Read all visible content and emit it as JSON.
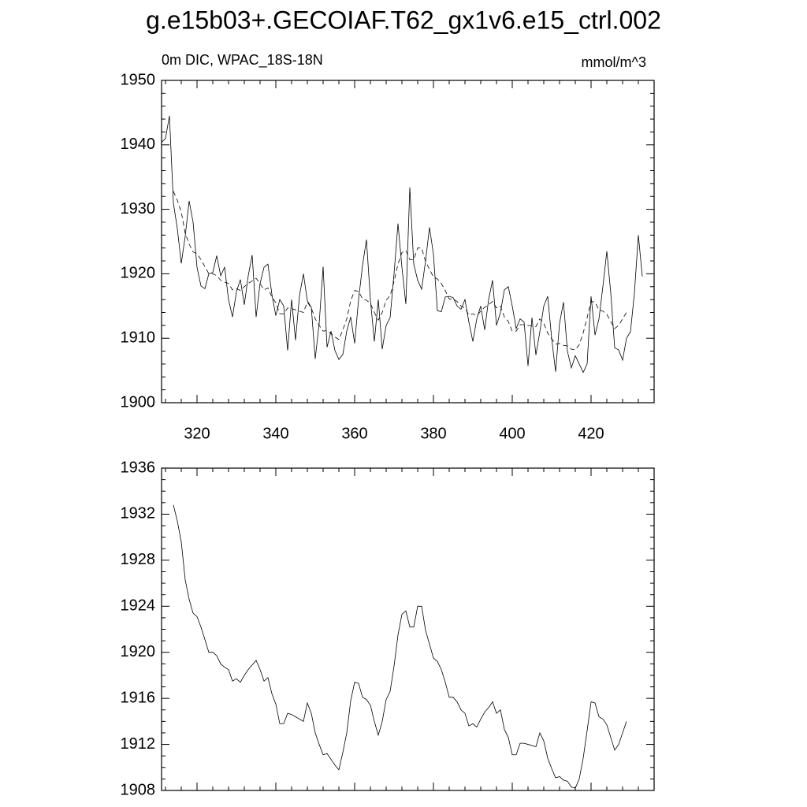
{
  "title": "g.e15b03+.GECOIAF.T62_gx1v6.e15_ctrl.002",
  "chart_data": [
    {
      "type": "line",
      "subtitle": "0m DIC, WPAC_18S-18N",
      "units": "mmol/m^3",
      "xlim": [
        311,
        436
      ],
      "ylim": [
        1900,
        1950
      ],
      "xticks": [
        320,
        340,
        360,
        380,
        400,
        420
      ],
      "yticks": [
        1900,
        1910,
        1920,
        1930,
        1940,
        1950
      ],
      "xtick_labels": true,
      "series": [
        {
          "color": "#000000",
          "style": "solid",
          "x": [
            311,
            312,
            313,
            314,
            315,
            316,
            317,
            318,
            319,
            320,
            321,
            322,
            323,
            324,
            325,
            326,
            327,
            328,
            329,
            330,
            331,
            332,
            333,
            334,
            335,
            336,
            337,
            338,
            339,
            340,
            341,
            342,
            343,
            344,
            345,
            346,
            347,
            348,
            349,
            350,
            351,
            352,
            353,
            354,
            355,
            356,
            357,
            358,
            359,
            360,
            361,
            362,
            363,
            364,
            365,
            366,
            367,
            368,
            369,
            370,
            371,
            372,
            373,
            374,
            375,
            376,
            377,
            378,
            379,
            380,
            381,
            382,
            383,
            384,
            385,
            386,
            387,
            388,
            389,
            390,
            391,
            392,
            393,
            394,
            395,
            396,
            397,
            398,
            399,
            400,
            401,
            402,
            403,
            404,
            405,
            406,
            407,
            408,
            409,
            410,
            411,
            412,
            413,
            414,
            415,
            416,
            417,
            418,
            419,
            420,
            421,
            422,
            423,
            424,
            425,
            426,
            427,
            428,
            429,
            430,
            431,
            432,
            433
          ],
          "values": [
            1940.4,
            1941,
            1944.5,
            1931,
            1927,
            1921.6,
            1925.8,
            1931.3,
            1928,
            1921,
            1918.1,
            1917.7,
            1920,
            1920.2,
            1922.8,
            1919.7,
            1921,
            1916,
            1913.3,
            1917.2,
            1919.1,
            1915.2,
            1919.7,
            1922.9,
            1913.3,
            1918.5,
            1921,
            1921.5,
            1916.8,
            1913.5,
            1916,
            1915,
            1908.1,
            1916,
            1909.7,
            1916.6,
            1920,
            1915.8,
            1914.8,
            1906.8,
            1912.3,
            1921.1,
            1908.6,
            1911.1,
            1908.1,
            1906.7,
            1907.5,
            1911.1,
            1913.3,
            1909.2,
            1916,
            1921.3,
            1925.3,
            1916,
            1909.5,
            1916,
            1908.3,
            1912,
            1913.2,
            1920,
            1927.8,
            1921,
            1915.3,
            1933.4,
            1921.5,
            1919,
            1917.6,
            1922,
            1927.2,
            1923,
            1914.3,
            1914.1,
            1916.4,
            1916.5,
            1916.3,
            1915,
            1914.5,
            1916,
            1912.5,
            1909.5,
            1913,
            1915,
            1911.3,
            1916,
            1919,
            1912,
            1914,
            1917.5,
            1918,
            1915,
            1911.5,
            1913,
            1912.5,
            1905.7,
            1913.2,
            1907.4,
            1911,
            1915,
            1916.5,
            1910,
            1904.8,
            1912.3,
            1915.6,
            1908,
            1905.4,
            1907.3,
            1906,
            1904.7,
            1906,
            1916.5,
            1910.5,
            1913,
            1918,
            1923.5,
            1917,
            1908.5,
            1908.2,
            1906.6,
            1910,
            1911,
            1917,
            1926,
            1919.6
          ]
        },
        {
          "color": "#000000",
          "style": "dashed",
          "x": [
            314,
            315,
            316,
            317,
            318,
            319,
            320,
            321,
            322,
            323,
            324,
            325,
            326,
            327,
            328,
            329,
            330,
            331,
            332,
            333,
            334,
            335,
            336,
            337,
            338,
            339,
            340,
            341,
            342,
            343,
            344,
            345,
            346,
            347,
            348,
            349,
            350,
            351,
            352,
            353,
            354,
            355,
            356,
            357,
            358,
            359,
            360,
            361,
            362,
            363,
            364,
            365,
            366,
            367,
            368,
            369,
            370,
            371,
            372,
            373,
            374,
            375,
            376,
            377,
            378,
            379,
            380,
            381,
            382,
            383,
            384,
            385,
            386,
            387,
            388,
            389,
            390,
            391,
            392,
            393,
            394,
            395,
            396,
            397,
            398,
            399,
            400,
            401,
            402,
            403,
            404,
            405,
            406,
            407,
            408,
            409,
            410,
            411,
            412,
            413,
            414,
            415,
            416,
            417,
            418,
            419,
            420,
            421,
            422,
            423,
            424,
            425,
            426,
            427,
            428,
            429
          ],
          "values": [
            1932.8,
            1931.4,
            1929.6,
            1926.3,
            1924.6,
            1923.4,
            1923.1,
            1922.2,
            1921.1,
            1920,
            1920,
            1919.7,
            1919,
            1918.7,
            1918.5,
            1917.5,
            1917.7,
            1917.4,
            1918,
            1918.5,
            1918.9,
            1919.3,
            1918.5,
            1917.5,
            1917.8,
            1916.4,
            1915.5,
            1913.8,
            1913.8,
            1914.7,
            1914.6,
            1914.4,
            1914.2,
            1914,
            1915.6,
            1914.7,
            1913,
            1912,
            1911.1,
            1911.2,
            1910.7,
            1910.2,
            1909.8,
            1911.3,
            1913,
            1915.8,
            1917.4,
            1917.3,
            1916.1,
            1915.9,
            1915.4,
            1914,
            1912.8,
            1914,
            1915.9,
            1916.6,
            1918.8,
            1921.5,
            1923.3,
            1923.6,
            1922.2,
            1922.2,
            1924,
            1924,
            1921.9,
            1920.7,
            1919.5,
            1919.2,
            1918.5,
            1917.4,
            1916.1,
            1916.1,
            1915.7,
            1915,
            1914.7,
            1913.6,
            1913.8,
            1913.5,
            1914.2,
            1914.8,
            1915.2,
            1915.7,
            1914.7,
            1915,
            1913.3,
            1912.6,
            1911.1,
            1911.1,
            1912.1,
            1912.1,
            1912,
            1911.9,
            1911.8,
            1913,
            1912.3,
            1910.8,
            1909.9,
            1909.1,
            1909.2,
            1908.9,
            1908.8,
            1908.3,
            1908.2,
            1909,
            1910.8,
            1913.2,
            1915.7,
            1915.6,
            1914.4,
            1914.2,
            1913.7,
            1912.6,
            1911.5,
            1912,
            1913,
            1914
          ]
        }
      ]
    },
    {
      "type": "line",
      "xlim": [
        311,
        436
      ],
      "ylim": [
        1908,
        1936
      ],
      "xticks": [
        320,
        340,
        360,
        380,
        400,
        420
      ],
      "yticks": [
        1908,
        1912,
        1916,
        1920,
        1924,
        1928,
        1932,
        1936
      ],
      "xtick_labels": false,
      "series": [
        {
          "color": "#000000",
          "style": "solid",
          "x": [
            314,
            315,
            316,
            317,
            318,
            319,
            320,
            321,
            322,
            323,
            324,
            325,
            326,
            327,
            328,
            329,
            330,
            331,
            332,
            333,
            334,
            335,
            336,
            337,
            338,
            339,
            340,
            341,
            342,
            343,
            344,
            345,
            346,
            347,
            348,
            349,
            350,
            351,
            352,
            353,
            354,
            355,
            356,
            357,
            358,
            359,
            360,
            361,
            362,
            363,
            364,
            365,
            366,
            367,
            368,
            369,
            370,
            371,
            372,
            373,
            374,
            375,
            376,
            377,
            378,
            379,
            380,
            381,
            382,
            383,
            384,
            385,
            386,
            387,
            388,
            389,
            390,
            391,
            392,
            393,
            394,
            395,
            396,
            397,
            398,
            399,
            400,
            401,
            402,
            403,
            404,
            405,
            406,
            407,
            408,
            409,
            410,
            411,
            412,
            413,
            414,
            415,
            416,
            417,
            418,
            419,
            420,
            421,
            422,
            423,
            424,
            425,
            426,
            427,
            428,
            429
          ],
          "values": [
            1932.8,
            1931.4,
            1929.6,
            1926.3,
            1924.6,
            1923.4,
            1923.1,
            1922.2,
            1921.1,
            1920,
            1920,
            1919.7,
            1919,
            1918.7,
            1918.5,
            1917.5,
            1917.7,
            1917.4,
            1918,
            1918.5,
            1918.9,
            1919.3,
            1918.5,
            1917.5,
            1917.8,
            1916.4,
            1915.5,
            1913.8,
            1913.8,
            1914.7,
            1914.6,
            1914.4,
            1914.2,
            1914,
            1915.6,
            1914.7,
            1913,
            1912,
            1911.1,
            1911.2,
            1910.7,
            1910.2,
            1909.8,
            1911.3,
            1913,
            1915.8,
            1917.4,
            1917.3,
            1916.1,
            1915.9,
            1915.4,
            1914,
            1912.8,
            1914,
            1915.9,
            1916.6,
            1918.8,
            1921.5,
            1923.3,
            1923.6,
            1922.2,
            1922.2,
            1924,
            1924,
            1921.9,
            1920.7,
            1919.5,
            1919.2,
            1918.5,
            1917.4,
            1916.1,
            1916.1,
            1915.7,
            1915,
            1914.7,
            1913.6,
            1913.8,
            1913.5,
            1914.2,
            1914.8,
            1915.2,
            1915.7,
            1914.7,
            1915,
            1913.3,
            1912.6,
            1911.1,
            1911.1,
            1912.1,
            1912.1,
            1912,
            1911.9,
            1911.8,
            1913,
            1912.3,
            1910.8,
            1909.9,
            1909.1,
            1909.2,
            1908.9,
            1908.8,
            1908.3,
            1908.2,
            1909,
            1910.8,
            1913.2,
            1915.7,
            1915.6,
            1914.4,
            1914.2,
            1913.7,
            1912.6,
            1911.5,
            1912,
            1913,
            1914
          ]
        }
      ]
    }
  ]
}
